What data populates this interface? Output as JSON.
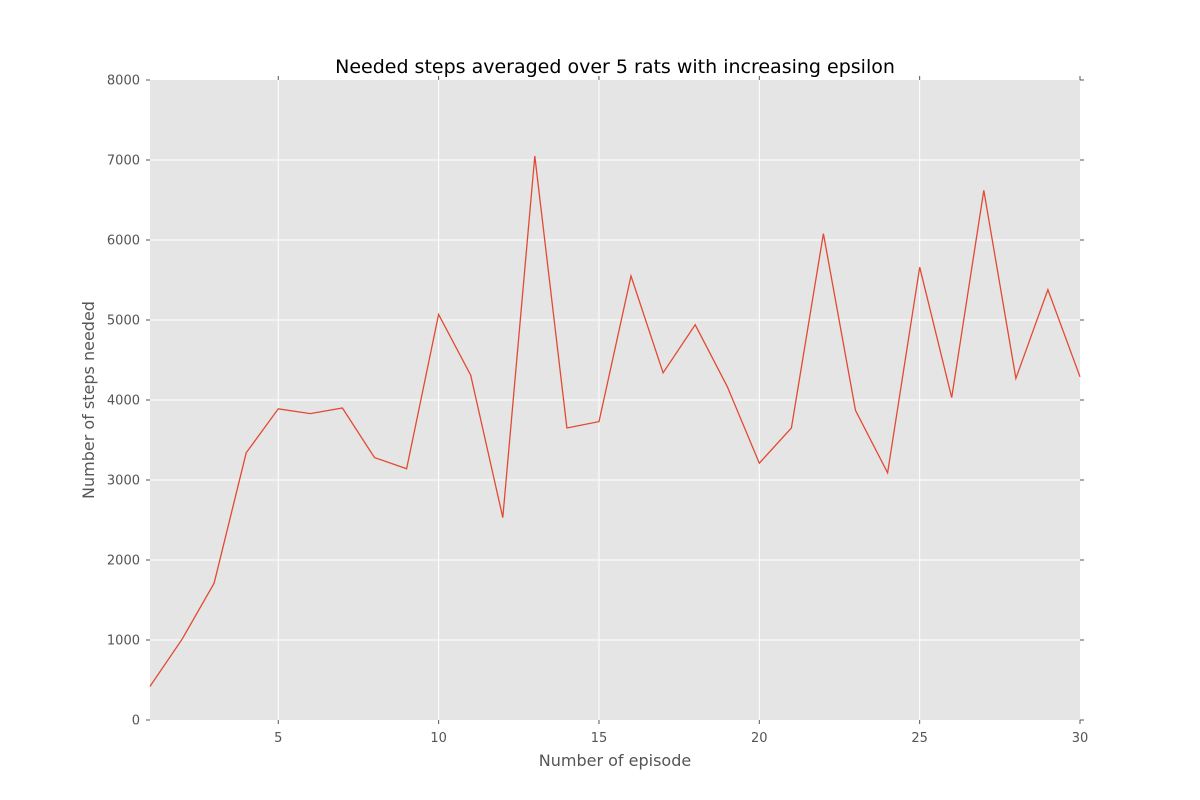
{
  "chart_data": {
    "type": "line",
    "title": "Needed steps averaged over 5 rats with increasing epsilon",
    "xlabel": "Number of episode",
    "ylabel": "Number of steps needed",
    "xlim": [
      1,
      30
    ],
    "ylim": [
      0,
      8000
    ],
    "xticks": [
      5,
      10,
      15,
      20,
      25,
      30
    ],
    "yticks": [
      0,
      1000,
      2000,
      3000,
      4000,
      5000,
      6000,
      7000,
      8000
    ],
    "grid": true,
    "series": [
      {
        "color": "#e24a33",
        "x": [
          1,
          2,
          3,
          4,
          5,
          6,
          7,
          8,
          9,
          10,
          11,
          12,
          13,
          14,
          15,
          16,
          17,
          18,
          19,
          20,
          21,
          22,
          23,
          24,
          25,
          26,
          27,
          28,
          29,
          30
        ],
        "y": [
          420,
          1010,
          1710,
          3340,
          3890,
          3830,
          3900,
          3280,
          3140,
          5070,
          4310,
          2530,
          7050,
          3650,
          3730,
          5550,
          4340,
          4940,
          4170,
          3210,
          3650,
          6080,
          3870,
          3090,
          5660,
          4030,
          6620,
          4270,
          5380,
          4290
        ]
      }
    ],
    "colors": {
      "plot_background": "#e5e5e5",
      "grid": "#ffffff",
      "text": "#555555"
    }
  }
}
